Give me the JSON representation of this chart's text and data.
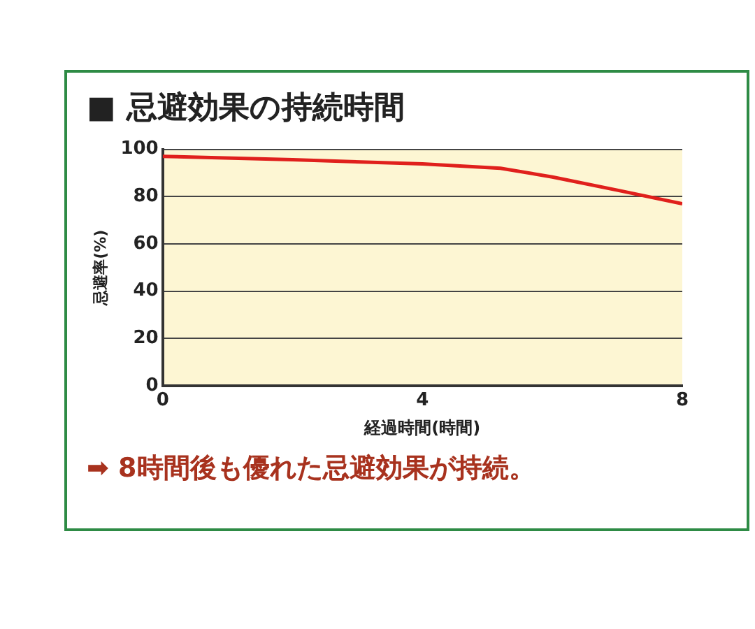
{
  "chart_data": {
    "type": "line",
    "title": "■ 忌避効果の持続時間",
    "xlabel": "経過時間(時間)",
    "ylabel": "忌避率(%)",
    "annotations": [
      "➡ 8時間後も優れた忌避効果が持続。"
    ],
    "x": [
      0,
      2,
      4,
      5.2,
      6,
      7,
      8
    ],
    "series": [
      {
        "color": "#e0201c",
        "values": [
          97,
          95.6,
          93.8,
          92,
          88.3,
          82.7,
          77
        ]
      }
    ],
    "xlim": [
      0,
      8
    ],
    "xticks": [
      0,
      4,
      8
    ],
    "ylim": [
      0,
      100
    ],
    "yticks": [
      0,
      20,
      40,
      60,
      80,
      100
    ],
    "grid": "y",
    "legend": false,
    "marker": "none",
    "line_style": "solid"
  }
}
